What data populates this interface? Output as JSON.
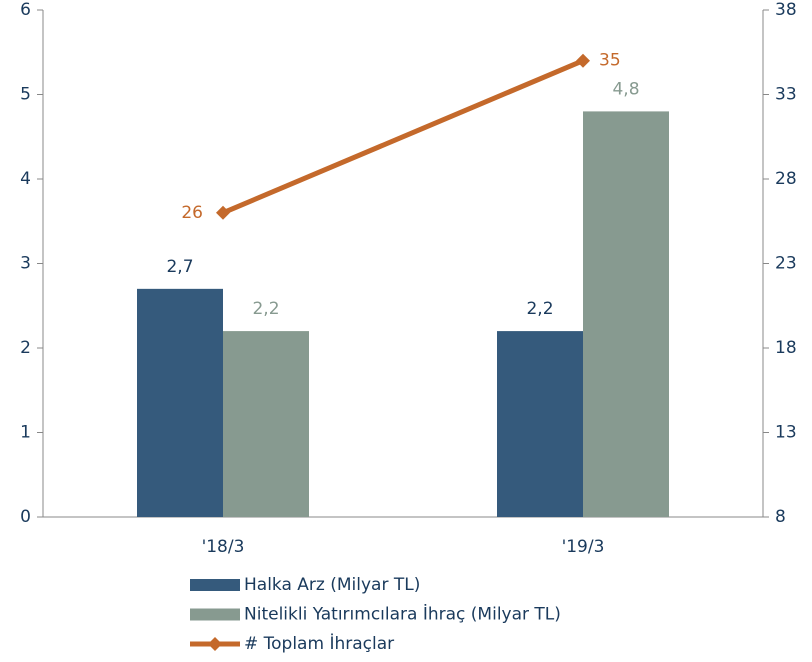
{
  "chart_data": {
    "type": "bar",
    "categories": [
      "'18/3",
      "'19/3"
    ],
    "series": [
      {
        "name": "Halka Arz (Milyar TL)",
        "type": "bar",
        "color": "#355a7c",
        "label_color": "#1a3a5c",
        "values": [
          2.7,
          2.2
        ],
        "value_labels": [
          "2,7",
          "2,2"
        ]
      },
      {
        "name": "Nitelikli Yatırımcılara İhraç (Milyar TL)",
        "type": "bar",
        "color": "#879a90",
        "label_color": "#879a90",
        "values": [
          2.2,
          4.8
        ],
        "value_labels": [
          "2,2",
          "4,8"
        ]
      },
      {
        "name": "# Toplam İhraçlar",
        "type": "line",
        "axis": "y2",
        "color": "#c4692b",
        "label_color": "#c4692b",
        "values": [
          26,
          35
        ]
      }
    ],
    "ylim": [
      0,
      6
    ],
    "yticks": [
      0,
      1,
      2,
      3,
      4,
      5,
      6
    ],
    "y2lim": [
      8,
      38
    ],
    "y2ticks": [
      8,
      13,
      18,
      23,
      28,
      33,
      38
    ]
  }
}
